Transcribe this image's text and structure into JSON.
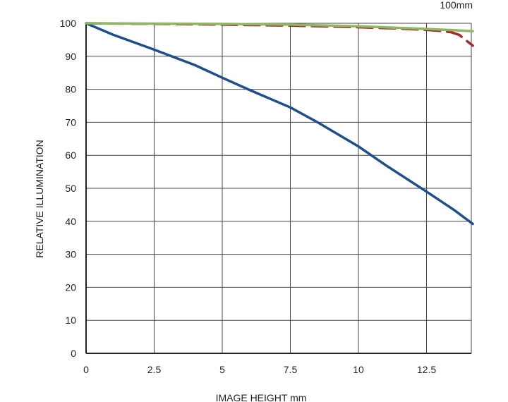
{
  "chart_data": {
    "type": "line",
    "title": "100mm",
    "xlabel": "IMAGE HEIGHT   mm",
    "ylabel": "RELATIVE ILLUMINATION",
    "xlim": [
      0,
      14.2
    ],
    "ylim": [
      0,
      100
    ],
    "x_ticks": [
      "0",
      "2.5",
      "5",
      "7.5",
      "10",
      "12.5"
    ],
    "y_ticks": [
      "0",
      "10",
      "20",
      "30",
      "40",
      "50",
      "60",
      "70",
      "80",
      "90",
      "100"
    ],
    "grid": true,
    "series": [
      {
        "color": "#1f4e8c",
        "dash": "solid",
        "x": [
          0,
          1,
          2.5,
          4,
          5,
          6,
          7.5,
          8.5,
          10,
          11,
          12.5,
          13.5,
          14.2
        ],
        "y": [
          100,
          96.5,
          92,
          87.3,
          83.5,
          79.8,
          74.5,
          70,
          62.7,
          57,
          49,
          43.5,
          39.2
        ]
      },
      {
        "color": "#a52a2a",
        "dash": "dashed",
        "x": [
          0,
          2.5,
          5,
          7.5,
          10,
          11.5,
          12.5,
          13,
          13.4,
          13.7,
          14.2
        ],
        "y": [
          100,
          99.8,
          99.6,
          99.3,
          98.8,
          98.4,
          98,
          97.7,
          97.3,
          96.5,
          93.2
        ]
      },
      {
        "color": "#8db862",
        "dash": "solid",
        "x": [
          0,
          2.5,
          5,
          7.5,
          10,
          12.5,
          13.5,
          14.2
        ],
        "y": [
          100,
          99.9,
          99.8,
          99.6,
          99.1,
          98.3,
          97.9,
          97.6
        ]
      }
    ]
  }
}
